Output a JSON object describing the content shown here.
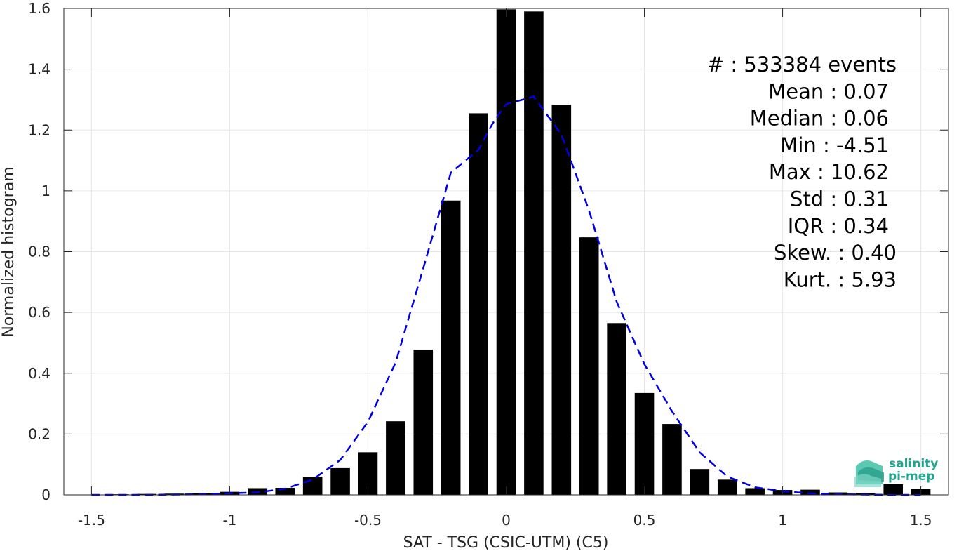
{
  "chart_data": {
    "type": "bar",
    "xlabel": "SAT - TSG (CSIC-UTM) (C5)",
    "ylabel": "Normalized histogram",
    "xlim": [
      -1.6,
      1.6
    ],
    "ylim": [
      0,
      1.6
    ],
    "xticks": [
      -1.5,
      -1,
      -0.5,
      0,
      0.5,
      1,
      1.5
    ],
    "xtick_labels": [
      "-1.5",
      "-1",
      "-0.5",
      "0",
      "0.5",
      "1",
      "1.5"
    ],
    "yticks": [
      0,
      0.2,
      0.4,
      0.6,
      0.8,
      1,
      1.2,
      1.4,
      1.6
    ],
    "ytick_labels": [
      "0",
      "0.2",
      "0.4",
      "0.6",
      "0.8",
      "1",
      "1.2",
      "1.4",
      "1.6"
    ],
    "grid": true,
    "bar_width": 0.07,
    "bins": [
      {
        "x": -1.5,
        "y": 0.001
      },
      {
        "x": -1.4,
        "y": 0.002
      },
      {
        "x": -1.3,
        "y": 0.003
      },
      {
        "x": -1.2,
        "y": 0.004
      },
      {
        "x": -1.1,
        "y": 0.005
      },
      {
        "x": -1.0,
        "y": 0.01
      },
      {
        "x": -0.9,
        "y": 0.022
      },
      {
        "x": -0.8,
        "y": 0.023
      },
      {
        "x": -0.7,
        "y": 0.06
      },
      {
        "x": -0.6,
        "y": 0.088
      },
      {
        "x": -0.5,
        "y": 0.14
      },
      {
        "x": -0.4,
        "y": 0.242
      },
      {
        "x": -0.3,
        "y": 0.478
      },
      {
        "x": -0.2,
        "y": 0.968
      },
      {
        "x": -0.1,
        "y": 1.255
      },
      {
        "x": 0.0,
        "y": 1.597
      },
      {
        "x": 0.1,
        "y": 1.59
      },
      {
        "x": 0.2,
        "y": 1.283
      },
      {
        "x": 0.3,
        "y": 0.847
      },
      {
        "x": 0.4,
        "y": 0.565
      },
      {
        "x": 0.5,
        "y": 0.335
      },
      {
        "x": 0.6,
        "y": 0.233
      },
      {
        "x": 0.7,
        "y": 0.085
      },
      {
        "x": 0.8,
        "y": 0.05
      },
      {
        "x": 0.9,
        "y": 0.022
      },
      {
        "x": 1.0,
        "y": 0.016
      },
      {
        "x": 1.1,
        "y": 0.017
      },
      {
        "x": 1.2,
        "y": 0.008
      },
      {
        "x": 1.3,
        "y": 0.006
      },
      {
        "x": 1.4,
        "y": 0.035
      },
      {
        "x": 1.5,
        "y": 0.02
      }
    ],
    "fit_curve": {
      "color": "#0000e0",
      "style": "dashed",
      "points": [
        [
          -1.5,
          0.0
        ],
        [
          -1.3,
          0.0
        ],
        [
          -1.1,
          0.002
        ],
        [
          -0.9,
          0.008
        ],
        [
          -0.8,
          0.02
        ],
        [
          -0.7,
          0.05
        ],
        [
          -0.6,
          0.115
        ],
        [
          -0.5,
          0.24
        ],
        [
          -0.4,
          0.435
        ],
        [
          -0.3,
          0.745
        ],
        [
          -0.2,
          1.06
        ],
        [
          -0.1,
          1.135
        ],
        [
          -0.05,
          1.22
        ],
        [
          0.0,
          1.285
        ],
        [
          0.1,
          1.31
        ],
        [
          0.2,
          1.185
        ],
        [
          0.3,
          0.935
        ],
        [
          0.4,
          0.635
        ],
        [
          0.5,
          0.43
        ],
        [
          0.6,
          0.275
        ],
        [
          0.7,
          0.14
        ],
        [
          0.8,
          0.06
        ],
        [
          0.9,
          0.025
        ],
        [
          1.0,
          0.012
        ],
        [
          1.1,
          0.005
        ],
        [
          1.2,
          0.002
        ],
        [
          1.4,
          0.0
        ],
        [
          1.5,
          0.0
        ]
      ]
    },
    "stats": [
      "#  : 533384 events",
      "Mean : 0.07",
      "Median : 0.06",
      "Min : -4.51",
      "Max : 10.62",
      "Std : 0.31",
      "IQR : 0.34",
      "Skew. : 0.40",
      "Kurt. : 5.93"
    ]
  },
  "logo": {
    "line1": "salinity",
    "line2": "pi-mep"
  },
  "colors": {
    "bars": "#000000",
    "fit": "#0000e0",
    "grid": "#e6e6e6",
    "axes": "#262626",
    "logo": "#20a58f"
  }
}
